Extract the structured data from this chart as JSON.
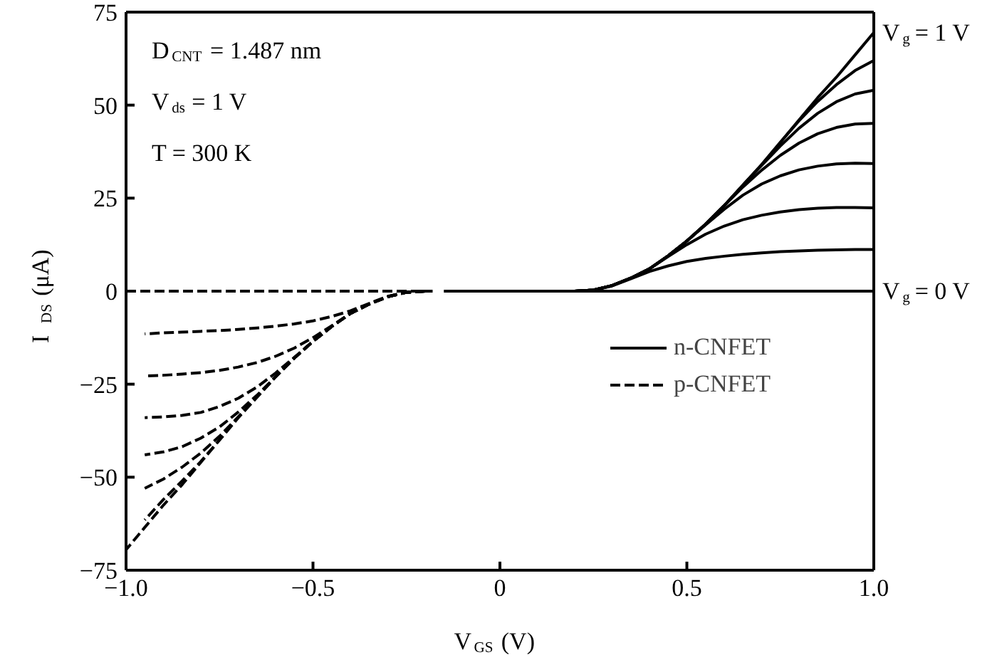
{
  "chart_data": {
    "type": "line",
    "xlabel": "V$_{GS}$ (V)",
    "ylabel": "I$_{DS}$ (μA)",
    "xlim": [
      -1,
      1
    ],
    "ylim": [
      -75,
      75
    ],
    "xticks": [
      {
        "value": -1,
        "label": "−1.0"
      },
      {
        "value": -0.5,
        "label": "−0.5"
      },
      0,
      0.5,
      {
        "value": 1,
        "label": "1.0"
      }
    ],
    "yticks": [
      {
        "value": -75,
        "label": "−75"
      },
      {
        "value": -50,
        "label": "−50"
      },
      {
        "value": -25,
        "label": "−25"
      },
      0,
      25,
      50,
      75
    ],
    "grid": false,
    "legend": "right",
    "marker": "none",
    "annotations": [
      "D$_{CNT}$ = 1.487 nm",
      "V$_{ds}$ = 1 V",
      "T = 300 K",
      {
        "text": "V$_{g}$ = 1 V",
        "x": 1,
        "y": 69.5
      },
      {
        "text": "V$_{g}$ = 0 V",
        "x": 1,
        "y": 0
      }
    ],
    "series": [
      {
        "name": "n-CNFET",
        "color": "#000000",
        "line_style": "solid",
        "x": [
          -0.15,
          1.0
        ],
        "values": [
          0,
          0
        ]
      },
      {
        "color": "#000000",
        "line_style": "solid",
        "x": [
          0.2,
          0.25,
          0.3,
          0.35,
          0.4,
          0.45,
          0.5,
          0.55,
          0.6,
          0.65,
          0.7,
          0.75,
          0.8,
          0.85,
          0.9,
          0.95,
          1.0
        ],
        "values": [
          0,
          0.3,
          1.4,
          3.3,
          5.3,
          6.8,
          8,
          8.8,
          9.4,
          9.9,
          10.3,
          10.6,
          10.8,
          11,
          11.1,
          11.2,
          11.2
        ]
      },
      {
        "color": "#000000",
        "line_style": "solid",
        "x": [
          0.2,
          0.25,
          0.3,
          0.35,
          0.4,
          0.45,
          0.5,
          0.55,
          0.6,
          0.65,
          0.7,
          0.75,
          0.8,
          0.85,
          0.9,
          0.95,
          1.0
        ],
        "values": [
          0,
          0.3,
          1.5,
          3.5,
          6,
          9.3,
          12.5,
          15.3,
          17.5,
          19.2,
          20.4,
          21.3,
          21.9,
          22.3,
          22.5,
          22.5,
          22.4
        ]
      },
      {
        "color": "#000000",
        "line_style": "solid",
        "x": [
          0.2,
          0.25,
          0.3,
          0.35,
          0.4,
          0.45,
          0.5,
          0.55,
          0.6,
          0.65,
          0.7,
          0.75,
          0.8,
          0.85,
          0.9,
          0.95,
          1.0
        ],
        "values": [
          0,
          0.3,
          1.5,
          3.5,
          6,
          9.5,
          13.5,
          17.8,
          22,
          25.8,
          28.8,
          31,
          32.6,
          33.6,
          34.2,
          34.4,
          34.3
        ]
      },
      {
        "color": "#000000",
        "line_style": "solid",
        "x": [
          0.2,
          0.25,
          0.3,
          0.35,
          0.4,
          0.45,
          0.5,
          0.55,
          0.6,
          0.65,
          0.7,
          0.75,
          0.8,
          0.85,
          0.9,
          0.95,
          1.0
        ],
        "values": [
          0,
          0.3,
          1.5,
          3.5,
          6,
          9.5,
          13.5,
          18,
          23,
          28,
          32.5,
          36.5,
          39.8,
          42.3,
          44,
          44.9,
          45.1
        ]
      },
      {
        "color": "#000000",
        "line_style": "solid",
        "x": [
          0.2,
          0.25,
          0.3,
          0.35,
          0.4,
          0.45,
          0.5,
          0.55,
          0.6,
          0.65,
          0.7,
          0.75,
          0.8,
          0.85,
          0.9,
          0.95,
          1.0
        ],
        "values": [
          0,
          0.3,
          1.5,
          3.5,
          6,
          9.5,
          13.5,
          18,
          23,
          28.5,
          33.8,
          39,
          43.8,
          47.8,
          50.9,
          53,
          54
        ]
      },
      {
        "color": "#000000",
        "line_style": "solid",
        "x": [
          0.2,
          0.25,
          0.3,
          0.35,
          0.4,
          0.45,
          0.5,
          0.55,
          0.6,
          0.65,
          0.7,
          0.75,
          0.8,
          0.85,
          0.9,
          0.95,
          1.0
        ],
        "values": [
          0,
          0.3,
          1.5,
          3.5,
          6,
          9.5,
          13.5,
          18,
          23,
          28.5,
          34,
          40,
          45.8,
          51,
          55.5,
          59.3,
          62
        ]
      },
      {
        "color": "#000000",
        "line_style": "solid",
        "x": [
          0.2,
          0.25,
          0.3,
          0.35,
          0.4,
          0.45,
          0.5,
          0.55,
          0.6,
          0.65,
          0.7,
          0.75,
          0.8,
          0.85,
          0.9,
          0.95,
          1.0
        ],
        "values": [
          0,
          0.3,
          1.5,
          3.5,
          6,
          9.5,
          13.5,
          18,
          23,
          28.5,
          34,
          40,
          46,
          52,
          57.5,
          63.5,
          69.5
        ]
      },
      {
        "name": "p-CNFET",
        "color": "#000000",
        "line_style": "dashed",
        "x": [
          -1.0,
          -0.18
        ],
        "values": [
          0,
          0
        ]
      },
      {
        "color": "#000000",
        "line_style": "dashed",
        "x": [
          -0.2,
          -0.25,
          -0.3,
          -0.35,
          -0.4,
          -0.45,
          -0.5,
          -0.55,
          -0.6,
          -0.65,
          -0.7,
          -0.75,
          -0.8,
          -0.85,
          -0.9,
          -0.95
        ],
        "values": [
          0,
          -0.3,
          -1.4,
          -3.3,
          -5.3,
          -6.8,
          -8,
          -8.8,
          -9.4,
          -9.9,
          -10.3,
          -10.6,
          -10.8,
          -11,
          -11.2,
          -11.5
        ]
      },
      {
        "color": "#000000",
        "line_style": "dashed",
        "x": [
          -0.2,
          -0.25,
          -0.3,
          -0.35,
          -0.4,
          -0.45,
          -0.5,
          -0.55,
          -0.6,
          -0.65,
          -0.7,
          -0.75,
          -0.8,
          -0.85,
          -0.9,
          -0.95
        ],
        "values": [
          0,
          -0.3,
          -1.5,
          -3.5,
          -6,
          -9.3,
          -12.5,
          -15.3,
          -17.5,
          -19.2,
          -20.4,
          -21.3,
          -21.9,
          -22.3,
          -22.6,
          -22.8
        ]
      },
      {
        "color": "#000000",
        "line_style": "dashed",
        "x": [
          -0.2,
          -0.25,
          -0.3,
          -0.35,
          -0.4,
          -0.45,
          -0.5,
          -0.55,
          -0.6,
          -0.65,
          -0.7,
          -0.75,
          -0.8,
          -0.85,
          -0.9,
          -0.95
        ],
        "values": [
          0,
          -0.3,
          -1.5,
          -3.5,
          -6,
          -9.5,
          -13.5,
          -17.8,
          -22,
          -25.8,
          -28.8,
          -31,
          -32.6,
          -33.4,
          -33.8,
          -34
        ]
      },
      {
        "color": "#000000",
        "line_style": "dashed",
        "x": [
          -0.2,
          -0.25,
          -0.3,
          -0.35,
          -0.4,
          -0.45,
          -0.5,
          -0.55,
          -0.6,
          -0.65,
          -0.7,
          -0.75,
          -0.8,
          -0.85,
          -0.9,
          -0.95
        ],
        "values": [
          0,
          -0.3,
          -1.5,
          -3.5,
          -6,
          -9.5,
          -13.5,
          -18,
          -23,
          -28,
          -32.5,
          -36.5,
          -39.5,
          -41.8,
          -43.2,
          -44
        ]
      },
      {
        "color": "#000000",
        "line_style": "dashed",
        "x": [
          -0.2,
          -0.25,
          -0.3,
          -0.35,
          -0.4,
          -0.45,
          -0.5,
          -0.55,
          -0.6,
          -0.65,
          -0.7,
          -0.75,
          -0.8,
          -0.85,
          -0.9,
          -0.95
        ],
        "values": [
          0,
          -0.3,
          -1.5,
          -3.5,
          -6,
          -9.5,
          -13.5,
          -18,
          -23,
          -28.5,
          -33.8,
          -39,
          -43.5,
          -47.3,
          -50.5,
          -53
        ]
      },
      {
        "color": "#000000",
        "line_style": "dashed",
        "x": [
          -0.2,
          -0.25,
          -0.3,
          -0.35,
          -0.4,
          -0.45,
          -0.5,
          -0.55,
          -0.6,
          -0.65,
          -0.7,
          -0.75,
          -0.8,
          -0.85,
          -0.9,
          -0.95
        ],
        "values": [
          0,
          -0.3,
          -1.5,
          -3.5,
          -6,
          -9.5,
          -13.5,
          -18,
          -23,
          -28.5,
          -34,
          -40,
          -45.8,
          -51,
          -56,
          -61.5
        ]
      },
      {
        "color": "#000000",
        "line_style": "dashed",
        "x": [
          -0.2,
          -0.25,
          -0.3,
          -0.35,
          -0.4,
          -0.45,
          -0.5,
          -0.55,
          -0.6,
          -0.65,
          -0.7,
          -0.75,
          -0.8,
          -0.85,
          -0.9,
          -0.95,
          -1.0
        ],
        "values": [
          0,
          -0.3,
          -1.5,
          -3.5,
          -6,
          -9.5,
          -13.5,
          -18,
          -23,
          -28.5,
          -34,
          -40,
          -46,
          -52,
          -57.5,
          -63.5,
          -69.5
        ]
      }
    ]
  }
}
